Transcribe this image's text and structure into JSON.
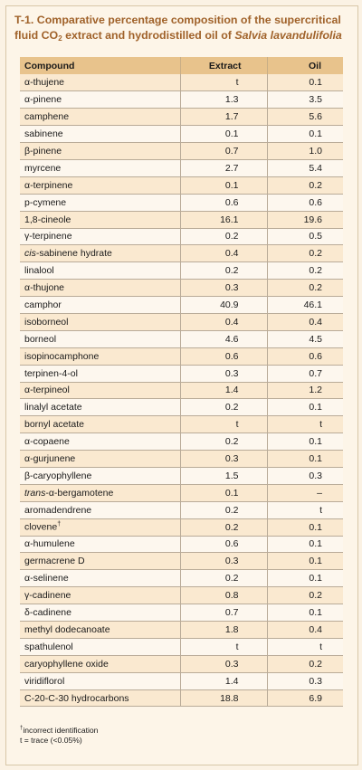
{
  "title": {
    "prefix": "T-1. Comparative percentage composition of the supercritical fluid CO",
    "sub": "2",
    "middle": " extract and hydrodistilled oil of ",
    "species": "Salvia lavandulifolia"
  },
  "table": {
    "headers": [
      "Compound",
      "Extract",
      "Oil"
    ],
    "rows": [
      {
        "compound": "α-thujene",
        "extract": "t",
        "oil": "0.1"
      },
      {
        "compound": "α-pinene",
        "extract": "1.3",
        "oil": "3.5"
      },
      {
        "compound": "camphene",
        "extract": "1.7",
        "oil": "5.6"
      },
      {
        "compound": "sabinene",
        "extract": "0.1",
        "oil": "0.1"
      },
      {
        "compound": "β-pinene",
        "extract": "0.7",
        "oil": "1.0"
      },
      {
        "compound": "myrcene",
        "extract": "2.7",
        "oil": "5.4"
      },
      {
        "compound": "α-terpinene",
        "extract": "0.1",
        "oil": "0.2"
      },
      {
        "compound": "p-cymene",
        "extract": "0.6",
        "oil": "0.6"
      },
      {
        "compound": "1,8-cineole",
        "extract": "16.1",
        "oil": "19.6"
      },
      {
        "compound": "γ-terpinene",
        "extract": "0.2",
        "oil": "0.5"
      },
      {
        "compound": "cis-sabinene hydrate",
        "extract": "0.4",
        "oil": "0.2"
      },
      {
        "compound": "linalool",
        "extract": "0.2",
        "oil": "0.2"
      },
      {
        "compound": "α-thujone",
        "extract": "0.3",
        "oil": "0.2"
      },
      {
        "compound": "camphor",
        "extract": "40.9",
        "oil": "46.1"
      },
      {
        "compound": "isoborneol",
        "extract": "0.4",
        "oil": "0.4"
      },
      {
        "compound": "borneol",
        "extract": "4.6",
        "oil": "4.5"
      },
      {
        "compound": "isopinocamphone",
        "extract": "0.6",
        "oil": "0.6"
      },
      {
        "compound": "terpinen-4-ol",
        "extract": "0.3",
        "oil": "0.7"
      },
      {
        "compound": "α-terpineol",
        "extract": "1.4",
        "oil": "1.2"
      },
      {
        "compound": "linalyl acetate",
        "extract": "0.2",
        "oil": "0.1"
      },
      {
        "compound": "bornyl acetate",
        "extract": "t",
        "oil": "t"
      },
      {
        "compound": "α-copaene",
        "extract": "0.2",
        "oil": "0.1"
      },
      {
        "compound": "α-gurjunene",
        "extract": "0.3",
        "oil": "0.1"
      },
      {
        "compound": "β-caryophyllene",
        "extract": "1.5",
        "oil": "0.3"
      },
      {
        "compound": "trans-α-bergamotene",
        "extract": "0.1",
        "oil": "–"
      },
      {
        "compound": "aromadendrene",
        "extract": "0.2",
        "oil": "t"
      },
      {
        "compound": "clovene†",
        "extract": "0.2",
        "oil": "0.1"
      },
      {
        "compound": "α-humulene",
        "extract": "0.6",
        "oil": "0.1"
      },
      {
        "compound": "germacrene D",
        "extract": "0.3",
        "oil": "0.1"
      },
      {
        "compound": "α-selinene",
        "extract": "0.2",
        "oil": "0.1"
      },
      {
        "compound": "γ-cadinene",
        "extract": "0.8",
        "oil": "0.2"
      },
      {
        "compound": "δ-cadinene",
        "extract": "0.7",
        "oil": "0.1"
      },
      {
        "compound": "methyl dodecanoate",
        "extract": "1.8",
        "oil": "0.4"
      },
      {
        "compound": "spathulenol",
        "extract": "t",
        "oil": "t"
      },
      {
        "compound": "caryophyllene oxide",
        "extract": "0.3",
        "oil": "0.2"
      },
      {
        "compound": "viridiflorol",
        "extract": "1.4",
        "oil": "0.3"
      },
      {
        "compound": "C-20-C-30 hydrocarbons",
        "extract": "18.8",
        "oil": "6.9"
      }
    ]
  },
  "footnotes": {
    "dagger_symbol": "†",
    "dagger": "incorrect identification",
    "trace": "t = trace (<0.05%)"
  },
  "colors": {
    "title": "#a0622a",
    "header_bg": "#e8c38c",
    "row_alt_bg": "#fae9d0",
    "row_bg": "#fdf7ee",
    "page_bg": "#fbf2e4"
  }
}
